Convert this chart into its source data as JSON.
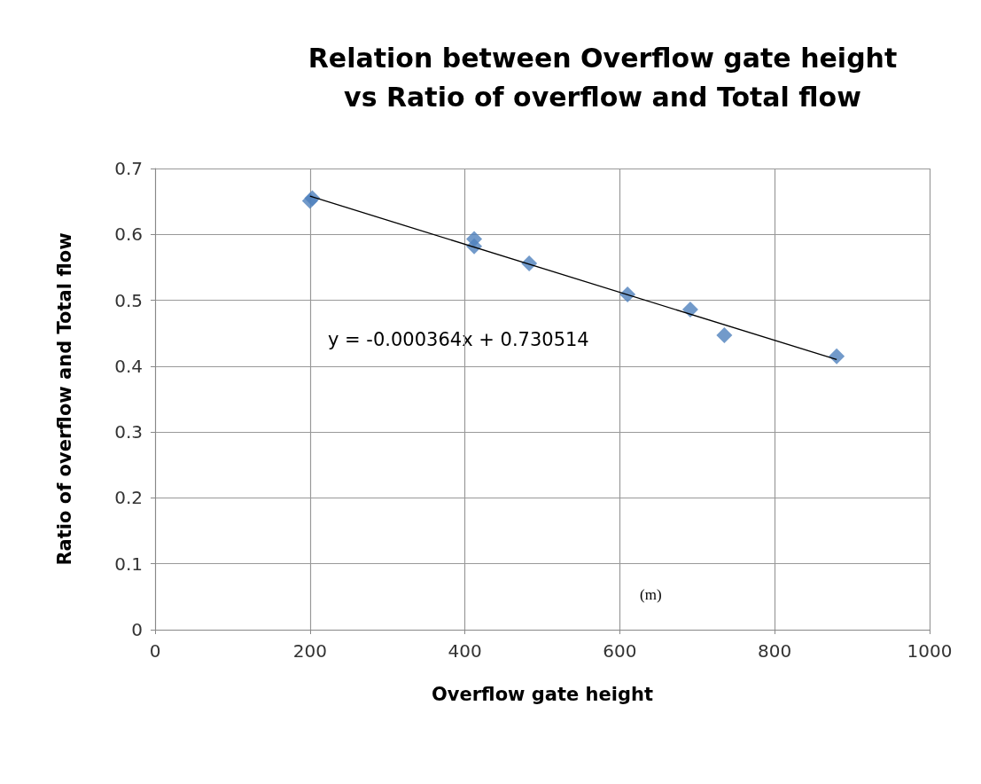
{
  "chart_data": {
    "type": "scatter",
    "title": "Relation between Overflow gate height\nvs Ratio of overflow and Total flow",
    "xlabel": "Overflow gate height",
    "ylabel": "Ratio of overflow and Total flow",
    "series": [
      {
        "type": "scatter",
        "color": "#4f81bd",
        "marker": "diamond",
        "x": [
          200,
          203,
          412,
          412,
          483,
          610,
          691,
          735,
          880
        ],
        "values": [
          0.651,
          0.655,
          0.593,
          0.582,
          0.556,
          0.509,
          0.486,
          0.447,
          0.415
        ]
      },
      {
        "type": "line",
        "color": "#000000",
        "marker": "none",
        "x": [
          200,
          880
        ],
        "values": [
          0.658,
          0.41
        ]
      }
    ],
    "xlim": [
      0,
      1000
    ],
    "xticks": [
      0,
      200,
      400,
      600,
      800,
      {
        "value": 1000,
        "label": "1000"
      }
    ],
    "ylim": [
      0,
      0.7
    ],
    "yticks": [
      0,
      0.1,
      0.2,
      0.3,
      0.4,
      0.5,
      0.6,
      0.7
    ],
    "grid": true,
    "annotations": [
      "y = -0.000364x + 0.730514",
      "(m)"
    ]
  }
}
